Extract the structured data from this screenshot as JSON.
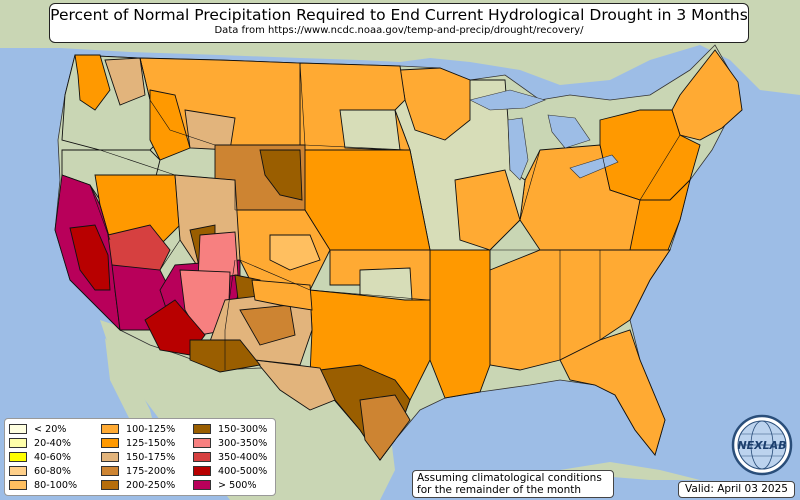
{
  "header": {
    "title": "Percent of Normal Precipitation Required to End Current Hydrological Drought in 3 Months",
    "subtitle": "Data from https://www.ncdc.noaa.gov/temp-and-precip/drought/recovery/"
  },
  "legend": [
    {
      "label": "< 20%",
      "color": "#ffffe0"
    },
    {
      "label": "20-40%",
      "color": "#ffffaa"
    },
    {
      "label": "40-60%",
      "color": "#ffff00"
    },
    {
      "label": "60-80%",
      "color": "#ffd08a"
    },
    {
      "label": "80-100%",
      "color": "#ffbf60"
    },
    {
      "label": "100-125%",
      "color": "#ffaa33"
    },
    {
      "label": "125-150%",
      "color": "#ff9900"
    },
    {
      "label": "150-175%",
      "color": "#e2b47c"
    },
    {
      "label": "175-200%",
      "color": "#cd8432"
    },
    {
      "label": "200-250%",
      "color": "#b56d0c"
    },
    {
      "label": "150-300%",
      "color": "#9a5e00"
    },
    {
      "label": "300-350%",
      "color": "#f78080"
    },
    {
      "label": "350-400%",
      "color": "#d64040"
    },
    {
      "label": "400-500%",
      "color": "#b80000"
    },
    {
      "label": "> 500%",
      "color": "#b8005a"
    }
  ],
  "note": {
    "line1": "Assuming climatological conditions",
    "line2": "for the remainder of the month"
  },
  "valid_label": "Valid: April 03 2025",
  "logo": {
    "text": "NEXLAB",
    "icon": "globe-icon"
  },
  "colors": {
    "ocean": "#9dbde6",
    "land": "#c9d6b4",
    "border": "#111111"
  }
}
